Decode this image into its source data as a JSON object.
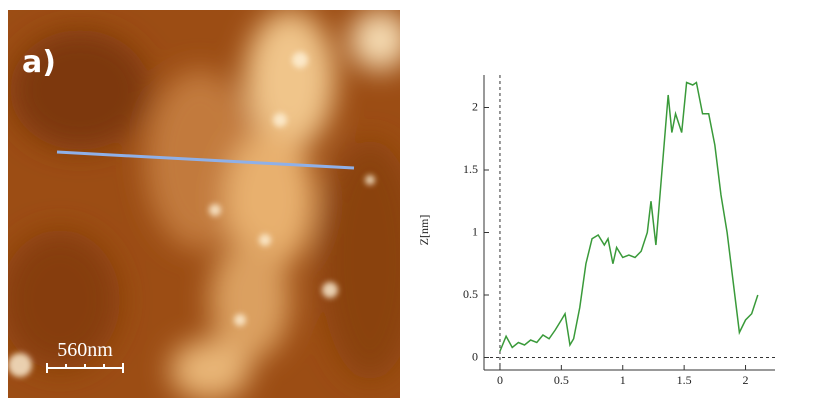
{
  "image": {
    "label": "a)",
    "scale_bar": "560nm"
  },
  "chart_data": {
    "type": "line",
    "ylabel": "Z[nm]",
    "color": "#3a9a3a",
    "x": [
      0.0,
      0.05,
      0.1,
      0.15,
      0.2,
      0.25,
      0.3,
      0.35,
      0.4,
      0.45,
      0.5,
      0.53,
      0.57,
      0.6,
      0.65,
      0.7,
      0.75,
      0.8,
      0.85,
      0.88,
      0.92,
      0.95,
      1.0,
      1.05,
      1.1,
      1.15,
      1.2,
      1.23,
      1.27,
      1.32,
      1.37,
      1.4,
      1.43,
      1.48,
      1.52,
      1.57,
      1.6,
      1.65,
      1.7,
      1.75,
      1.8,
      1.85,
      1.9,
      1.95,
      2.0,
      2.05,
      2.1
    ],
    "values": [
      0.05,
      0.17,
      0.08,
      0.12,
      0.1,
      0.14,
      0.12,
      0.18,
      0.15,
      0.22,
      0.3,
      0.35,
      0.1,
      0.15,
      0.4,
      0.75,
      0.95,
      0.98,
      0.9,
      0.95,
      0.75,
      0.88,
      0.8,
      0.82,
      0.8,
      0.85,
      1.0,
      1.25,
      0.9,
      1.5,
      2.1,
      1.8,
      1.95,
      1.8,
      2.2,
      2.18,
      2.2,
      1.95,
      1.95,
      1.7,
      1.3,
      1.0,
      0.6,
      0.2,
      0.3,
      0.35,
      0.5
    ],
    "xlim": [
      -0.13,
      2.24
    ],
    "ylim": [
      -0.1,
      2.26
    ],
    "xticks": [
      0,
      0.5,
      1,
      1.5,
      2
    ],
    "yticks": [
      0,
      0.5,
      1,
      1.5,
      2
    ]
  }
}
